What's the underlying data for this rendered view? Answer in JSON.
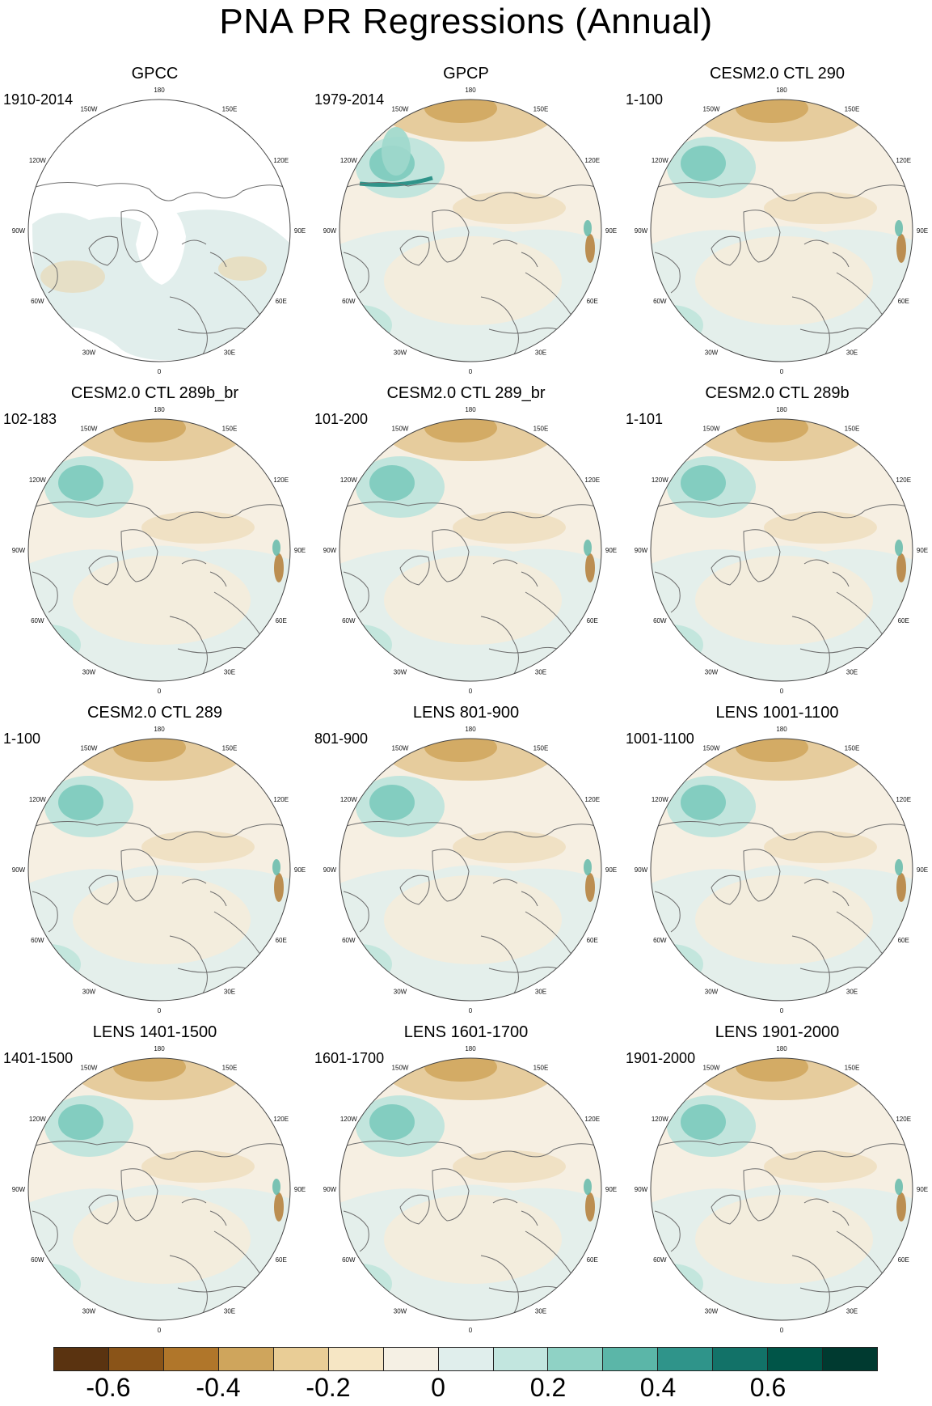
{
  "figure": {
    "title": "PNA PR Regressions (Annual)"
  },
  "longitude_labels": [
    "180",
    "150E",
    "120E",
    "90E",
    "60E",
    "30E",
    "0",
    "30W",
    "60W",
    "90W",
    "120W",
    "150W"
  ],
  "panels": [
    {
      "title": "GPCC",
      "period": "1910-2014",
      "variant": "gpcc"
    },
    {
      "title": "GPCP",
      "period": "1979-2014",
      "variant": "gpcp"
    },
    {
      "title": "CESM2.0 CTL 290",
      "period": "1-100",
      "variant": "model"
    },
    {
      "title": "CESM2.0 CTL 289b_br",
      "period": "102-183",
      "variant": "model"
    },
    {
      "title": "CESM2.0 CTL 289_br",
      "period": "101-200",
      "variant": "model"
    },
    {
      "title": "CESM2.0 CTL 289b",
      "period": "1-101",
      "variant": "model"
    },
    {
      "title": "CESM2.0 CTL 289",
      "period": "1-100",
      "variant": "model"
    },
    {
      "title": "LENS 801-900",
      "period": "801-900",
      "variant": "model"
    },
    {
      "title": "LENS 1001-1100",
      "period": "1001-1100",
      "variant": "model"
    },
    {
      "title": "LENS 1401-1500",
      "period": "1401-1500",
      "variant": "model"
    },
    {
      "title": "LENS 1601-1700",
      "period": "1601-1700",
      "variant": "model"
    },
    {
      "title": "LENS 1901-2000",
      "period": "1901-2000",
      "variant": "model"
    }
  ],
  "colorbar": {
    "colors": [
      "#5a3310",
      "#8a5418",
      "#b0762a",
      "#cfa55c",
      "#e9cd96",
      "#f6e6c4",
      "#f5f0e4",
      "#e0eeec",
      "#c2e6df",
      "#8fd2c5",
      "#5bb6a8",
      "#2f948a",
      "#127268",
      "#005548",
      "#003a30"
    ],
    "tick_values": [
      -0.6,
      -0.4,
      -0.2,
      0,
      0.2,
      0.4,
      0.6
    ],
    "tick_labels": [
      "-0.6",
      "-0.4",
      "-0.2",
      "0",
      "0.2",
      "0.4",
      "0.6"
    ]
  }
}
